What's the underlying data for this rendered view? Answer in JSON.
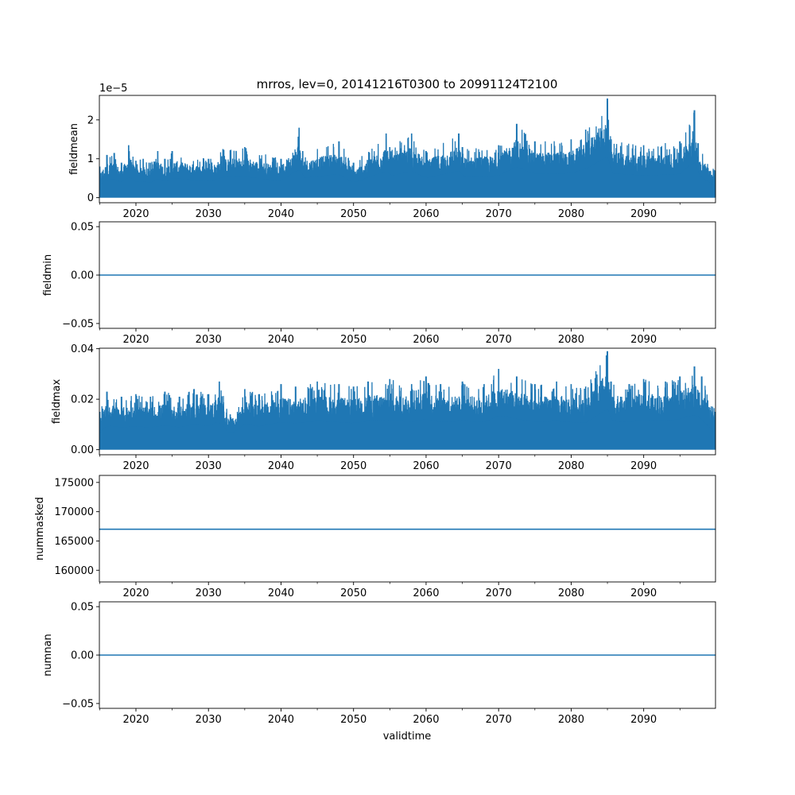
{
  "figure": {
    "title": "mrros, lev=0, 20141216T0300 to 20991124T2100",
    "xlabel": "validtime",
    "line_color": "#1f77b4"
  },
  "chart_data": [
    {
      "type": "line",
      "ylabel": "fieldmean",
      "offset_text": "1e−5",
      "xlim": [
        2014.96,
        2099.9
      ],
      "ylim": [
        -0.13,
        2.63
      ],
      "x_ticks": [
        2020,
        2030,
        2040,
        2050,
        2060,
        2070,
        2080,
        2090
      ],
      "x_tick_labels": [
        "2020",
        "2030",
        "2040",
        "2050",
        "2060",
        "2070",
        "2080",
        "2090"
      ],
      "y_ticks": [
        0,
        1,
        2
      ],
      "y_tick_labels": [
        "0",
        "1",
        "2"
      ],
      "envelope": {
        "x": [
          2015,
          2016,
          2017,
          2018,
          2019,
          2020,
          2021,
          2022,
          2023,
          2024,
          2025,
          2030,
          2032,
          2035,
          2040,
          2042.5,
          2043,
          2048,
          2050,
          2054.5,
          2055,
          2058,
          2060,
          2064.5,
          2065,
          2070,
          2072.5,
          2075,
          2080,
          2082,
          2085,
          2085.5,
          2090,
          2095,
          2097,
          2097.5,
          2099.9
        ],
        "max": [
          0.8,
          1.1,
          1.15,
          0.9,
          1.35,
          0.95,
          1.0,
          0.9,
          1.2,
          1.0,
          1.2,
          1.0,
          1.25,
          1.3,
          1.0,
          1.8,
          1.2,
          1.45,
          0.9,
          1.65,
          1.3,
          1.65,
          1.2,
          1.65,
          1.3,
          1.35,
          1.9,
          1.45,
          1.5,
          1.75,
          2.55,
          1.5,
          1.35,
          1.45,
          2.25,
          1.4,
          0.7
        ],
        "min": [
          0,
          0,
          0,
          0,
          0,
          0,
          0,
          0,
          0,
          0,
          0,
          0,
          0,
          0,
          0,
          0,
          0,
          0,
          0,
          0,
          0,
          0,
          0,
          0,
          0,
          0,
          0,
          0,
          0,
          0,
          0,
          0,
          0,
          0,
          0,
          0,
          0
        ]
      }
    },
    {
      "type": "line",
      "ylabel": "fieldmin",
      "xlim": [
        2014.96,
        2099.9
      ],
      "ylim": [
        -0.055,
        0.055
      ],
      "x_ticks": [
        2020,
        2030,
        2040,
        2050,
        2060,
        2070,
        2080,
        2090
      ],
      "x_tick_labels": [
        "2020",
        "2030",
        "2040",
        "2050",
        "2060",
        "2070",
        "2080",
        "2090"
      ],
      "y_ticks": [
        -0.05,
        0.0,
        0.05
      ],
      "y_tick_labels": [
        "−0.05",
        "0.00",
        "0.05"
      ],
      "constant": 0.0
    },
    {
      "type": "line",
      "ylabel": "fieldmax",
      "xlim": [
        2014.96,
        2099.9
      ],
      "ylim": [
        -0.002,
        0.0402
      ],
      "x_ticks": [
        2020,
        2030,
        2040,
        2050,
        2060,
        2070,
        2080,
        2090
      ],
      "x_tick_labels": [
        "2020",
        "2030",
        "2040",
        "2050",
        "2060",
        "2070",
        "2080",
        "2090"
      ],
      "y_ticks": [
        0.0,
        0.02,
        0.04
      ],
      "y_tick_labels": [
        "0.00",
        "0.02",
        "0.04"
      ],
      "envelope": {
        "x": [
          2015,
          2016,
          2018,
          2020,
          2022,
          2024,
          2026,
          2028,
          2030,
          2031.5,
          2033,
          2035,
          2037,
          2040,
          2042,
          2045,
          2048,
          2050,
          2052,
          2055,
          2058,
          2060,
          2062,
          2065,
          2068,
          2070,
          2072.5,
          2075,
          2078,
          2080,
          2082,
          2085,
          2085.5,
          2088,
          2090,
          2093,
          2095,
          2097,
          2098,
          2099.9
        ],
        "max": [
          0.015,
          0.023,
          0.021,
          0.022,
          0.021,
          0.023,
          0.021,
          0.024,
          0.022,
          0.027,
          0.014,
          0.024,
          0.022,
          0.026,
          0.025,
          0.027,
          0.026,
          0.025,
          0.027,
          0.028,
          0.026,
          0.029,
          0.026,
          0.027,
          0.026,
          0.032,
          0.029,
          0.026,
          0.027,
          0.026,
          0.025,
          0.039,
          0.027,
          0.026,
          0.028,
          0.027,
          0.029,
          0.033,
          0.029,
          0.015
        ],
        "min": [
          0,
          0,
          0,
          0,
          0,
          0,
          0,
          0,
          0,
          0,
          0,
          0,
          0,
          0,
          0,
          0,
          0,
          0,
          0,
          0,
          0,
          0,
          0,
          0,
          0,
          0,
          0,
          0,
          0,
          0,
          0,
          0,
          0,
          0,
          0,
          0,
          0,
          0,
          0,
          0
        ]
      }
    },
    {
      "type": "line",
      "ylabel": "nummasked",
      "xlim": [
        2014.96,
        2099.9
      ],
      "ylim": [
        158000,
        176200
      ],
      "x_ticks": [
        2020,
        2030,
        2040,
        2050,
        2060,
        2070,
        2080,
        2090
      ],
      "x_tick_labels": [
        "2020",
        "2030",
        "2040",
        "2050",
        "2060",
        "2070",
        "2080",
        "2090"
      ],
      "y_ticks": [
        160000,
        165000,
        170000,
        175000
      ],
      "y_tick_labels": [
        "160000",
        "165000",
        "170000",
        "175000"
      ],
      "constant": 167000
    },
    {
      "type": "line",
      "ylabel": "numnan",
      "xlim": [
        2014.96,
        2099.9
      ],
      "ylim": [
        -0.055,
        0.055
      ],
      "x_ticks": [
        2020,
        2030,
        2040,
        2050,
        2060,
        2070,
        2080,
        2090
      ],
      "x_tick_labels": [
        "2020",
        "2030",
        "2040",
        "2050",
        "2060",
        "2070",
        "2080",
        "2090"
      ],
      "y_ticks": [
        -0.05,
        0.0,
        0.05
      ],
      "y_tick_labels": [
        "−0.05",
        "0.00",
        "0.05"
      ],
      "constant": 0.0
    }
  ]
}
